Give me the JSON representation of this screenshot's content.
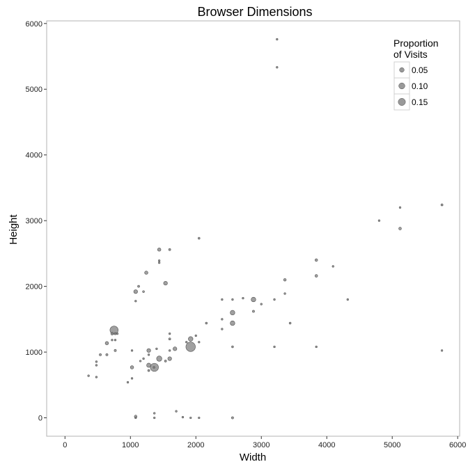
{
  "chart_data": {
    "type": "scatter",
    "title": "Browser Dimensions",
    "xlabel": "Width",
    "ylabel": "Height",
    "xlim": [
      -280,
      6030
    ],
    "ylim": [
      -280,
      6040
    ],
    "xticks": [
      0,
      1000,
      2000,
      3000,
      4000,
      5000,
      6000
    ],
    "yticks": [
      0,
      1000,
      2000,
      3000,
      4000,
      5000,
      6000
    ],
    "grid": false,
    "legend": {
      "title_line1": "Proportion",
      "title_line2": "of Visits",
      "placement": "top-right",
      "entries": [
        {
          "label": "0.05",
          "value": 0.05
        },
        {
          "label": "0.10",
          "value": 0.1
        },
        {
          "label": "0.15",
          "value": 0.15
        }
      ]
    },
    "colors": {
      "fill": "#808080",
      "stroke": "#505050",
      "axis": "#b3b3b3"
    },
    "points": [
      {
        "x": 360,
        "y": 640,
        "p": 0.002
      },
      {
        "x": 480,
        "y": 800,
        "p": 0.002
      },
      {
        "x": 480,
        "y": 854,
        "p": 0.002
      },
      {
        "x": 480,
        "y": 620,
        "p": 0.002
      },
      {
        "x": 540,
        "y": 960,
        "p": 0.005
      },
      {
        "x": 640,
        "y": 960,
        "p": 0.005
      },
      {
        "x": 640,
        "y": 1136,
        "p": 0.02
      },
      {
        "x": 720,
        "y": 1280,
        "p": 0.01
      },
      {
        "x": 750,
        "y": 1334,
        "p": 0.2
      },
      {
        "x": 768,
        "y": 1280,
        "p": 0.005
      },
      {
        "x": 800,
        "y": 1280,
        "p": 0.002
      },
      {
        "x": 720,
        "y": 1184,
        "p": 0.002
      },
      {
        "x": 768,
        "y": 1184,
        "p": 0.002
      },
      {
        "x": 768,
        "y": 1024,
        "p": 0.005
      },
      {
        "x": 960,
        "y": 540,
        "p": 0.002
      },
      {
        "x": 1024,
        "y": 600,
        "p": 0.002
      },
      {
        "x": 1024,
        "y": 768,
        "p": 0.02
      },
      {
        "x": 1024,
        "y": 1024,
        "p": 0.002
      },
      {
        "x": 1080,
        "y": 1920,
        "p": 0.03
      },
      {
        "x": 1080,
        "y": 1776,
        "p": 0.002
      },
      {
        "x": 1125,
        "y": 2001,
        "p": 0.004
      },
      {
        "x": 1200,
        "y": 1920,
        "p": 0.003
      },
      {
        "x": 1242,
        "y": 2208,
        "p": 0.02
      },
      {
        "x": 1440,
        "y": 2560,
        "p": 0.02
      },
      {
        "x": 1440,
        "y": 2392,
        "p": 0.002
      },
      {
        "x": 1440,
        "y": 2360,
        "p": 0.002
      },
      {
        "x": 1600,
        "y": 2560,
        "p": 0.004
      },
      {
        "x": 1536,
        "y": 2048,
        "p": 0.03
      },
      {
        "x": 2048,
        "y": 2732,
        "p": 0.003
      },
      {
        "x": 1152,
        "y": 864,
        "p": 0.002
      },
      {
        "x": 1200,
        "y": 900,
        "p": 0.002
      },
      {
        "x": 1280,
        "y": 800,
        "p": 0.04
      },
      {
        "x": 1280,
        "y": 720,
        "p": 0.004
      },
      {
        "x": 1280,
        "y": 1024,
        "p": 0.03
      },
      {
        "x": 1366,
        "y": 768,
        "p": 0.2
      },
      {
        "x": 1360,
        "y": 768,
        "p": 0.002
      },
      {
        "x": 1440,
        "y": 900,
        "p": 0.07
      },
      {
        "x": 1600,
        "y": 900,
        "p": 0.03
      },
      {
        "x": 1680,
        "y": 1050,
        "p": 0.03
      },
      {
        "x": 1920,
        "y": 1080,
        "p": 0.28
      },
      {
        "x": 1920,
        "y": 1200,
        "p": 0.05
      },
      {
        "x": 1600,
        "y": 1200,
        "p": 0.004
      },
      {
        "x": 1536,
        "y": 864,
        "p": 0.004
      },
      {
        "x": 1280,
        "y": 960,
        "p": 0.002
      },
      {
        "x": 1400,
        "y": 1050,
        "p": 0.002
      },
      {
        "x": 1600,
        "y": 1024,
        "p": 0.002
      },
      {
        "x": 1600,
        "y": 1280,
        "p": 0.002
      },
      {
        "x": 1856,
        "y": 1152,
        "p": 0.002
      },
      {
        "x": 2000,
        "y": 1250,
        "p": 0.002
      },
      {
        "x": 2048,
        "y": 1152,
        "p": 0.002
      },
      {
        "x": 2160,
        "y": 1440,
        "p": 0.003
      },
      {
        "x": 2400,
        "y": 1350,
        "p": 0.002
      },
      {
        "x": 2400,
        "y": 1500,
        "p": 0.002
      },
      {
        "x": 2400,
        "y": 1800,
        "p": 0.002
      },
      {
        "x": 2560,
        "y": 1440,
        "p": 0.05
      },
      {
        "x": 2560,
        "y": 1600,
        "p": 0.05
      },
      {
        "x": 2560,
        "y": 1800,
        "p": 0.002
      },
      {
        "x": 2560,
        "y": 1080,
        "p": 0.003
      },
      {
        "x": 2720,
        "y": 1820,
        "p": 0.002
      },
      {
        "x": 2880,
        "y": 1800,
        "p": 0.05
      },
      {
        "x": 2880,
        "y": 1620,
        "p": 0.005
      },
      {
        "x": 3000,
        "y": 1730,
        "p": 0.002
      },
      {
        "x": 3200,
        "y": 1800,
        "p": 0.002
      },
      {
        "x": 3360,
        "y": 1890,
        "p": 0.002
      },
      {
        "x": 3360,
        "y": 2100,
        "p": 0.01
      },
      {
        "x": 3440,
        "y": 1440,
        "p": 0.003
      },
      {
        "x": 3200,
        "y": 1080,
        "p": 0.002
      },
      {
        "x": 3840,
        "y": 1080,
        "p": 0.002
      },
      {
        "x": 3840,
        "y": 2160,
        "p": 0.01
      },
      {
        "x": 3840,
        "y": 2400,
        "p": 0.01
      },
      {
        "x": 4096,
        "y": 2304,
        "p": 0.002
      },
      {
        "x": 4320,
        "y": 1800,
        "p": 0.002
      },
      {
        "x": 4800,
        "y": 3000,
        "p": 0.002
      },
      {
        "x": 5120,
        "y": 2880,
        "p": 0.01
      },
      {
        "x": 5120,
        "y": 3200,
        "p": 0.002
      },
      {
        "x": 5760,
        "y": 3240,
        "p": 0.004
      },
      {
        "x": 5760,
        "y": 1024,
        "p": 0.002
      },
      {
        "x": 3240,
        "y": 5760,
        "p": 0.002
      },
      {
        "x": 3240,
        "y": 5333,
        "p": 0.002
      },
      {
        "x": 1080,
        "y": 0,
        "p": 0.002
      },
      {
        "x": 1080,
        "y": 20,
        "p": 0.01
      },
      {
        "x": 1366,
        "y": 0,
        "p": 0.002
      },
      {
        "x": 1366,
        "y": 70,
        "p": 0.002
      },
      {
        "x": 1700,
        "y": 100,
        "p": 0.002
      },
      {
        "x": 1800,
        "y": 10,
        "p": 0.002
      },
      {
        "x": 1920,
        "y": 0,
        "p": 0.002
      },
      {
        "x": 2048,
        "y": 0,
        "p": 0.002
      },
      {
        "x": 2560,
        "y": 0,
        "p": 0.005
      }
    ]
  }
}
